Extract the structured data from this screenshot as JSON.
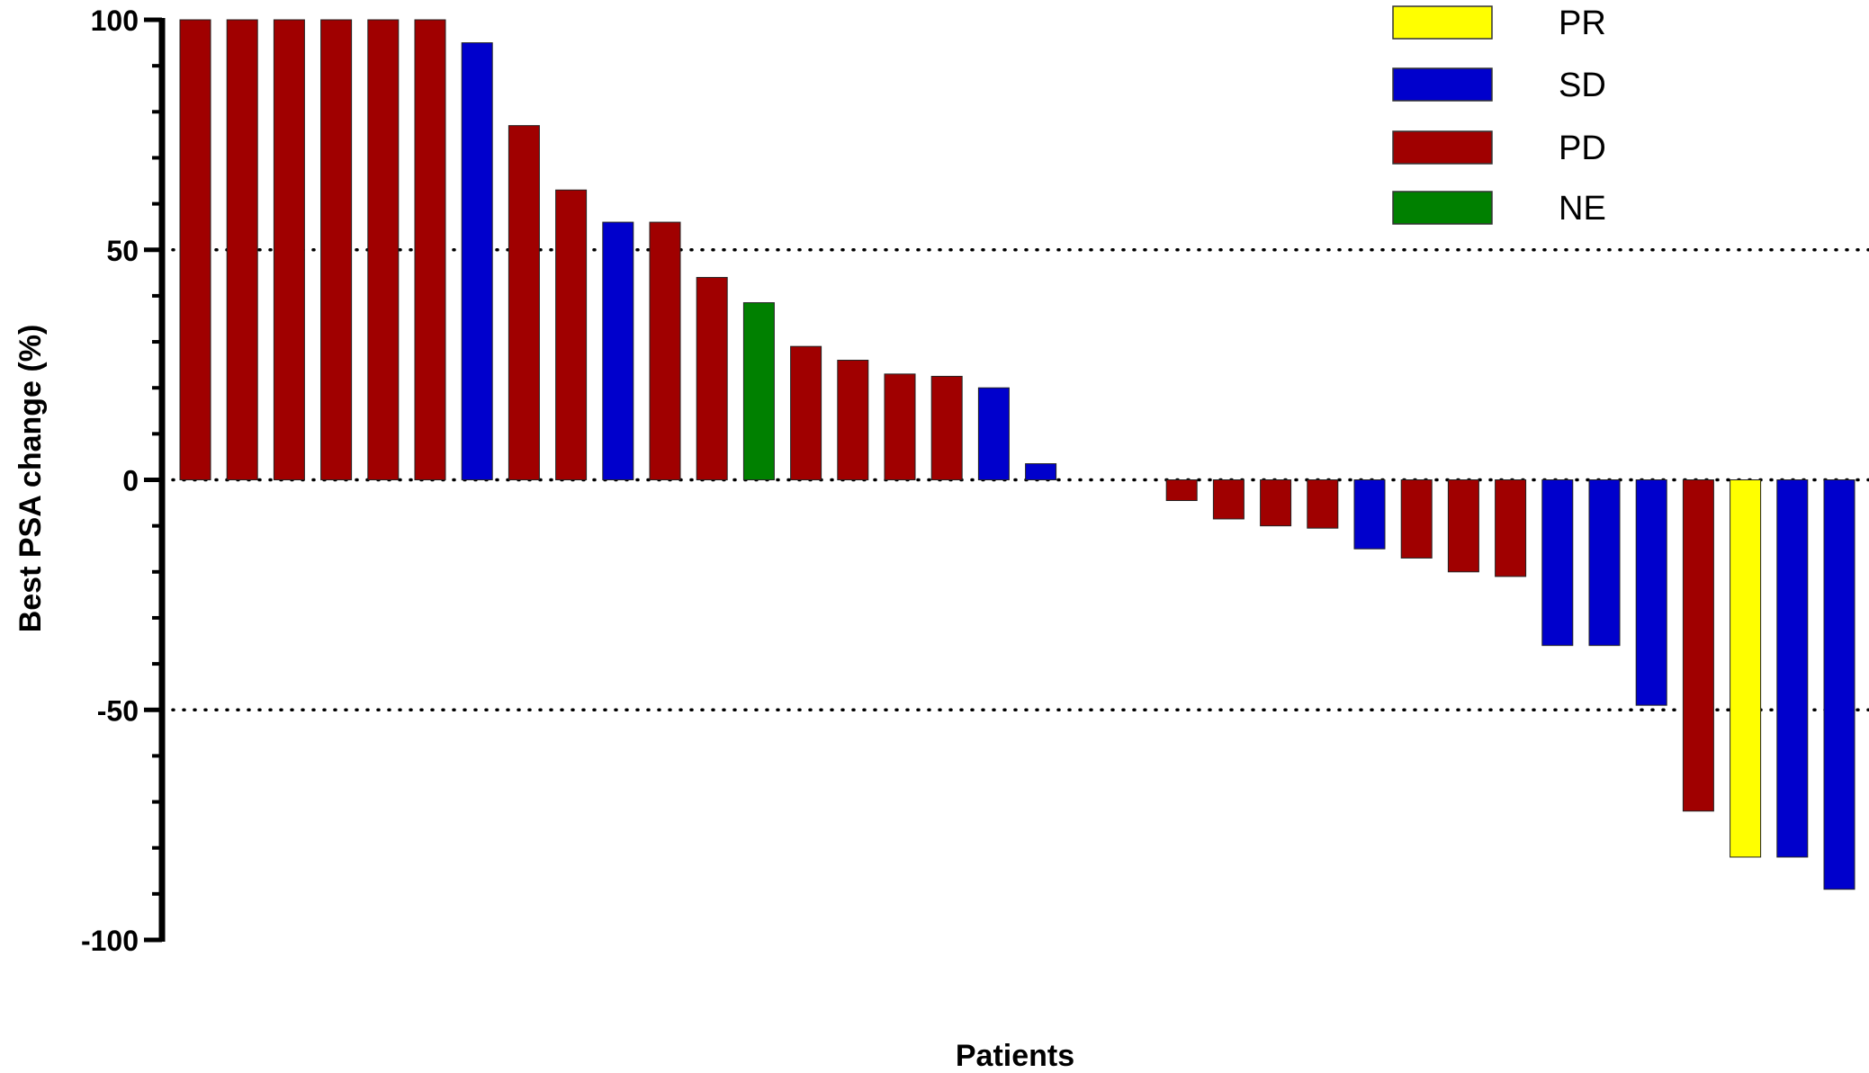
{
  "chart_data": {
    "type": "bar",
    "title": "",
    "xlabel": "Patients",
    "ylabel": "Best PSA change (%)",
    "ylim": [
      -100,
      100
    ],
    "yticks": [
      100,
      50,
      0,
      -50,
      -100
    ],
    "reference_lines": [
      50,
      0,
      -50
    ],
    "grid": false,
    "legend_position": "top-right",
    "legend": [
      {
        "label": "PR",
        "color": "#ffff00"
      },
      {
        "label": "SD",
        "color": "#0000cc"
      },
      {
        "label": "PD",
        "color": "#a00000"
      },
      {
        "label": "NE",
        "color": "#008000"
      }
    ],
    "colors": {
      "PR": "#ffff00",
      "SD": "#0000cc",
      "PD": "#a00000",
      "NE": "#008000"
    },
    "bars": [
      {
        "value": 100,
        "response": "PD"
      },
      {
        "value": 100,
        "response": "PD"
      },
      {
        "value": 100,
        "response": "PD"
      },
      {
        "value": 100,
        "response": "PD"
      },
      {
        "value": 100,
        "response": "PD"
      },
      {
        "value": 100,
        "response": "PD"
      },
      {
        "value": 95,
        "response": "SD"
      },
      {
        "value": 77,
        "response": "PD"
      },
      {
        "value": 63,
        "response": "PD"
      },
      {
        "value": 56,
        "response": "SD"
      },
      {
        "value": 56,
        "response": "PD"
      },
      {
        "value": 44,
        "response": "PD"
      },
      {
        "value": 38.5,
        "response": "NE"
      },
      {
        "value": 29,
        "response": "PD"
      },
      {
        "value": 26,
        "response": "PD"
      },
      {
        "value": 23,
        "response": "PD"
      },
      {
        "value": 22.5,
        "response": "PD"
      },
      {
        "value": 20,
        "response": "SD"
      },
      {
        "value": 3.5,
        "response": "SD"
      },
      {
        "value": 0,
        "response": "NE"
      },
      {
        "value": 0,
        "response": "NE"
      },
      {
        "value": -4.5,
        "response": "PD"
      },
      {
        "value": -8.5,
        "response": "PD"
      },
      {
        "value": -10,
        "response": "PD"
      },
      {
        "value": -10.5,
        "response": "PD"
      },
      {
        "value": -15,
        "response": "SD"
      },
      {
        "value": -17,
        "response": "PD"
      },
      {
        "value": -20,
        "response": "PD"
      },
      {
        "value": -21,
        "response": "PD"
      },
      {
        "value": -36,
        "response": "SD"
      },
      {
        "value": -36,
        "response": "SD"
      },
      {
        "value": -49,
        "response": "SD"
      },
      {
        "value": -72,
        "response": "PD"
      },
      {
        "value": -82,
        "response": "PR"
      },
      {
        "value": -82,
        "response": "SD"
      },
      {
        "value": -89,
        "response": "SD"
      }
    ]
  }
}
